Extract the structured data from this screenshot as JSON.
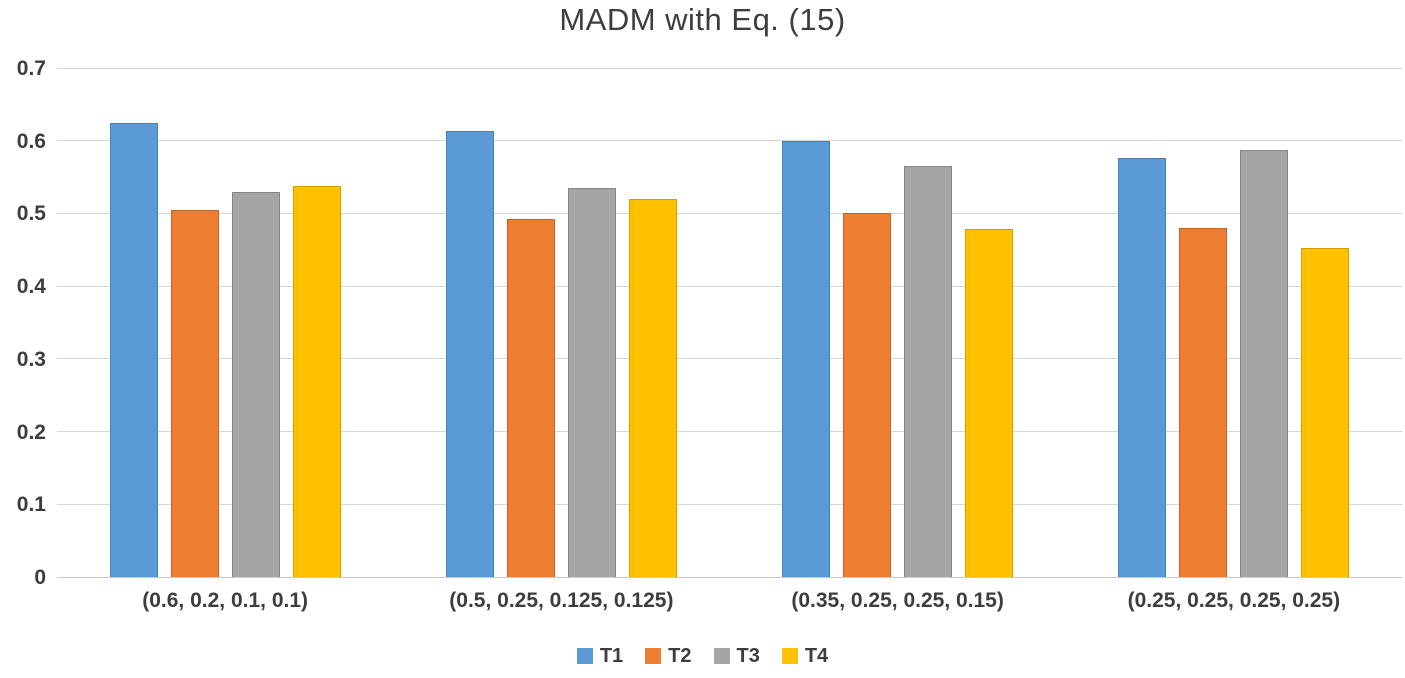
{
  "chart_data": {
    "type": "bar",
    "title": "MADM with Eq. (15)",
    "categories": [
      "(0.6, 0.2, 0.1, 0.1)",
      "(0.5, 0.25, 0.125, 0.125)",
      "(0.35, 0.25, 0.25, 0.15)",
      "(0.25, 0.25, 0.25, 0.25)"
    ],
    "series": [
      {
        "name": "T1",
        "color": "#5B9BD5",
        "values": [
          0.625,
          0.614,
          0.6,
          0.576
        ]
      },
      {
        "name": "T2",
        "color": "#ED7D31",
        "values": [
          0.505,
          0.492,
          0.5,
          0.48
        ]
      },
      {
        "name": "T3",
        "color": "#A5A5A5",
        "values": [
          0.53,
          0.535,
          0.565,
          0.587
        ]
      },
      {
        "name": "T4",
        "color": "#FFC000",
        "values": [
          0.538,
          0.52,
          0.478,
          0.453
        ]
      }
    ],
    "xlabel": "",
    "ylabel": "",
    "ylim": [
      0,
      0.7
    ],
    "yticks": [
      0,
      0.1,
      0.2,
      0.3,
      0.4,
      0.5,
      0.6,
      0.7
    ],
    "ytick_labels": [
      "0",
      "0.1",
      "0.2",
      "0.3",
      "0.4",
      "0.5",
      "0.6",
      "0.7"
    ],
    "grid": "horizontal",
    "legend_position": "bottom",
    "text_color": "#3d3d3d",
    "gridline_color": "#d6d6d6"
  }
}
